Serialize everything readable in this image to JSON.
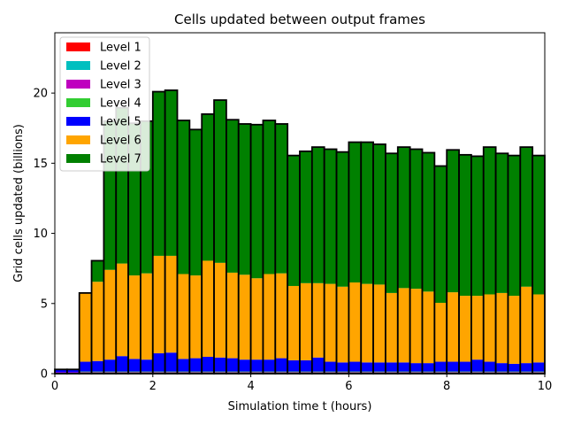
{
  "chart_data": {
    "type": "bar",
    "stacked": true,
    "title": "Cells updated between output frames",
    "xlabel": "Simulation time t (hours)",
    "ylabel": "Grid cells updated (billions)",
    "xlim": [
      0,
      10
    ],
    "ylim": [
      0,
      24.3
    ],
    "xticks": [
      0,
      2,
      4,
      6,
      8,
      10
    ],
    "yticks": [
      0,
      5,
      10,
      15,
      20
    ],
    "grid": false,
    "legend_position": "top-left",
    "bin_width": 0.25,
    "bin_starts": [
      0,
      0.25,
      0.5,
      0.75,
      1.0,
      1.25,
      1.5,
      1.75,
      2.0,
      2.25,
      2.5,
      2.75,
      3.0,
      3.25,
      3.5,
      3.75,
      4.0,
      4.25,
      4.5,
      4.75,
      5.0,
      5.25,
      5.5,
      5.75,
      6.0,
      6.25,
      6.5,
      6.75,
      7.0,
      7.25,
      7.5,
      7.75,
      8.0,
      8.25,
      8.5,
      8.75,
      9.0,
      9.25,
      9.5,
      9.75
    ],
    "series": [
      {
        "name": "Level 1",
        "color": "#ff0000",
        "values": [
          0.02,
          0.02,
          0.02,
          0.02,
          0.02,
          0.02,
          0.02,
          0.02,
          0.02,
          0.02,
          0.02,
          0.02,
          0.02,
          0.02,
          0.02,
          0.02,
          0.02,
          0.02,
          0.02,
          0.02,
          0.02,
          0.02,
          0.02,
          0.02,
          0.02,
          0.02,
          0.02,
          0.02,
          0.02,
          0.02,
          0.02,
          0.02,
          0.02,
          0.02,
          0.02,
          0.02,
          0.02,
          0.02,
          0.02,
          0.02
        ]
      },
      {
        "name": "Level 2",
        "color": "#00bfbf",
        "values": [
          0.03,
          0.03,
          0.03,
          0.03,
          0.03,
          0.03,
          0.03,
          0.03,
          0.03,
          0.03,
          0.03,
          0.03,
          0.03,
          0.03,
          0.03,
          0.03,
          0.03,
          0.03,
          0.03,
          0.03,
          0.03,
          0.03,
          0.03,
          0.03,
          0.03,
          0.03,
          0.03,
          0.03,
          0.03,
          0.03,
          0.03,
          0.03,
          0.03,
          0.03,
          0.03,
          0.03,
          0.03,
          0.03,
          0.03,
          0.03
        ]
      },
      {
        "name": "Level 3",
        "color": "#bf00bf",
        "values": [
          0.05,
          0.05,
          0.05,
          0.05,
          0.05,
          0.05,
          0.05,
          0.05,
          0.05,
          0.05,
          0.05,
          0.05,
          0.05,
          0.05,
          0.05,
          0.05,
          0.05,
          0.05,
          0.05,
          0.05,
          0.05,
          0.05,
          0.05,
          0.05,
          0.05,
          0.05,
          0.05,
          0.05,
          0.05,
          0.05,
          0.05,
          0.05,
          0.05,
          0.05,
          0.05,
          0.05,
          0.05,
          0.05,
          0.05,
          0.05
        ]
      },
      {
        "name": "Level 4",
        "color": "#32cd32",
        "values": [
          0.0,
          0.0,
          0.05,
          0.05,
          0.05,
          0.05,
          0.05,
          0.05,
          0.05,
          0.05,
          0.05,
          0.05,
          0.05,
          0.05,
          0.05,
          0.05,
          0.05,
          0.05,
          0.05,
          0.05,
          0.05,
          0.05,
          0.05,
          0.05,
          0.05,
          0.05,
          0.05,
          0.05,
          0.05,
          0.05,
          0.05,
          0.05,
          0.05,
          0.05,
          0.05,
          0.05,
          0.05,
          0.05,
          0.05,
          0.05
        ]
      },
      {
        "name": "Level 5",
        "color": "#0000ff",
        "values": [
          0.2,
          0.2,
          0.7,
          0.75,
          0.85,
          1.1,
          0.9,
          0.85,
          1.3,
          1.35,
          0.9,
          0.95,
          1.05,
          1.0,
          0.95,
          0.85,
          0.85,
          0.85,
          0.95,
          0.8,
          0.8,
          1.0,
          0.7,
          0.65,
          0.7,
          0.65,
          0.65,
          0.65,
          0.65,
          0.6,
          0.6,
          0.7,
          0.7,
          0.7,
          0.85,
          0.7,
          0.6,
          0.55,
          0.6,
          0.65
        ]
      },
      {
        "name": "Level 6",
        "color": "#ffa500",
        "values": [
          0.0,
          0.0,
          4.9,
          5.65,
          6.4,
          6.6,
          5.95,
          6.15,
          6.95,
          6.9,
          6.05,
          5.9,
          6.85,
          6.75,
          6.1,
          6.05,
          5.8,
          6.1,
          6.05,
          5.3,
          5.5,
          5.3,
          5.55,
          5.4,
          5.65,
          5.6,
          5.55,
          4.95,
          5.3,
          5.3,
          5.1,
          4.2,
          4.95,
          4.7,
          4.55,
          4.8,
          5.0,
          4.85,
          5.45,
          4.85
        ]
      },
      {
        "name": "Level 7",
        "color": "#008000",
        "values": [
          0.0,
          0.0,
          0.0,
          1.5,
          10.6,
          11.1,
          10.85,
          10.85,
          11.7,
          11.8,
          10.95,
          10.4,
          10.45,
          11.6,
          10.9,
          10.75,
          10.95,
          10.95,
          10.65,
          9.3,
          9.4,
          9.7,
          9.6,
          9.6,
          10.0,
          10.1,
          10.0,
          9.95,
          10.05,
          9.95,
          9.9,
          9.75,
          10.15,
          10.05,
          9.95,
          10.5,
          9.95,
          10.0,
          9.95,
          9.9
        ]
      }
    ]
  }
}
